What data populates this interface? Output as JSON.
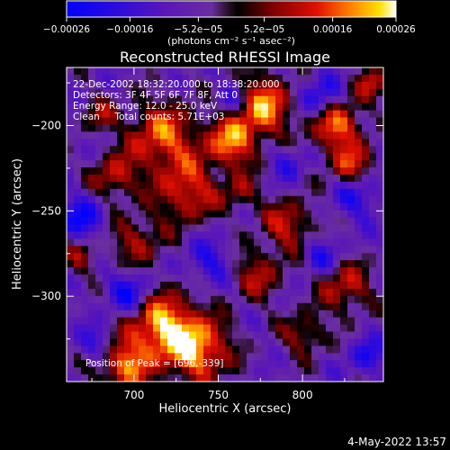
{
  "chart_data": {
    "type": "heatmap",
    "title": "Reconstructed RHESSI Image",
    "xlabel": "Heliocentric X (arcsec)",
    "ylabel": "Heliocentric Y (arcsec)",
    "x_ticks": [
      "700",
      "750",
      "800"
    ],
    "y_ticks": [
      "−200",
      "−250",
      "−300"
    ],
    "x_tick_values": [
      700,
      750,
      800
    ],
    "y_tick_values": [
      -200,
      -250,
      -300
    ],
    "xlim": [
      660,
      848
    ],
    "ylim": [
      -350,
      -166
    ],
    "colorbar": {
      "ticks": [
        "−0.00026",
        "−0.00016",
        "−5.2e−05",
        "5.2e−05",
        "0.00016",
        "0.00026"
      ],
      "tick_values": [
        -0.00026,
        -0.00016,
        -5.2e-05,
        5.2e-05,
        0.00016,
        0.00026
      ],
      "range": [
        -0.00026,
        0.00026
      ],
      "unit_label": "(photons cm⁻² s⁻¹ asec⁻²)",
      "colors": [
        "#0000ff",
        "#5a16b8",
        "#6a2ea0",
        "#2a0f28",
        "#000000",
        "#7a0000",
        "#e01000",
        "#ff8000",
        "#ffe000",
        "#ffffff"
      ]
    },
    "annotations": [
      "22-Dec-2002 18:32:20.000 to 18:38:20.000",
      "Detectors: 3F 4F 5F 6F 7F 8F, Att 0",
      "Energy Range: 12.0 - 25.0 keV",
      "Clean     Total counts: 5.71E+03"
    ],
    "peak_label": "Position of Peak = [696,-339]",
    "peak": [
      696,
      -339
    ]
  },
  "footer": {
    "timestamp": "4-May-2022 13:57"
  }
}
